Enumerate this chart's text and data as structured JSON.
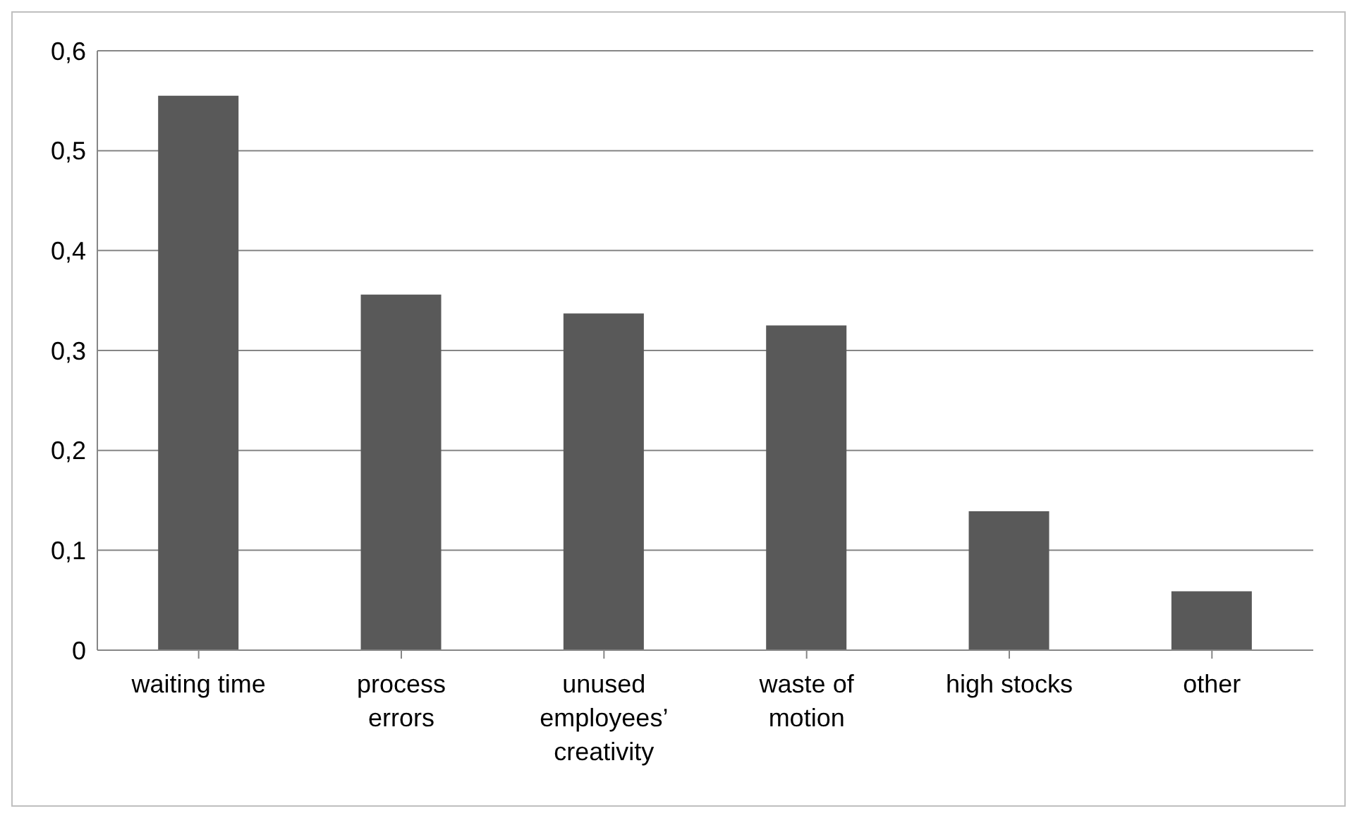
{
  "chart_data": {
    "type": "bar",
    "categories": [
      "waiting time",
      "process errors",
      "unused employees’ creativity",
      "waste of motion",
      "high stocks",
      "other"
    ],
    "values": [
      0.555,
      0.356,
      0.337,
      0.325,
      0.139,
      0.059
    ],
    "color": "#595959",
    "ylim": [
      0,
      0.6
    ],
    "yticks": [
      {
        "value": 0,
        "label": "0"
      },
      {
        "value": 0.1,
        "label": "0,1"
      },
      {
        "value": 0.2,
        "label": "0,2"
      },
      {
        "value": 0.3,
        "label": "0,3"
      },
      {
        "value": 0.4,
        "label": "0,4"
      },
      {
        "value": 0.5,
        "label": "0,5"
      },
      {
        "value": 0.6,
        "label": "0,6"
      }
    ],
    "grid": "y"
  }
}
